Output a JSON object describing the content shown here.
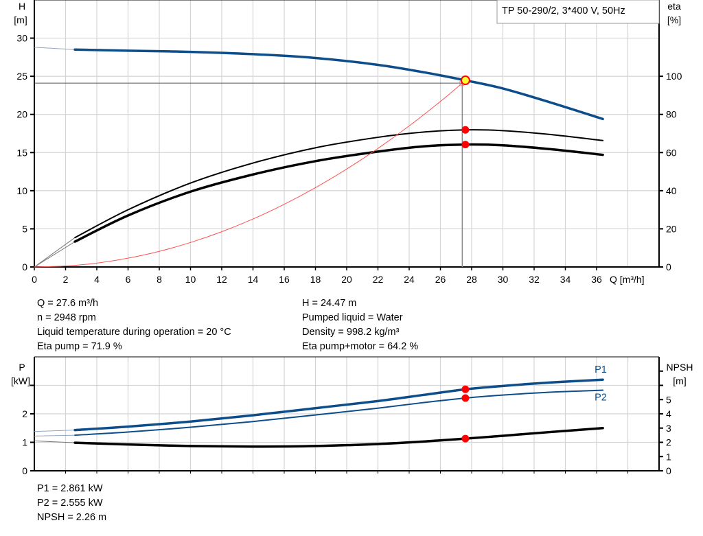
{
  "title": "TP 50-290/2, 3*400 V, 50Hz",
  "chart_data": [
    {
      "type": "line",
      "name_panel": "head-efficiency",
      "xlabel": "Q [m³/h]",
      "ylabel_left": [
        "H",
        "[m]"
      ],
      "ylabel_right": [
        "eta",
        "[%]"
      ],
      "xlim": [
        0,
        40
      ],
      "ylim_left": [
        0,
        35
      ],
      "ylim_right": [
        0,
        140
      ],
      "x_ticks": [
        "0",
        "2",
        "4",
        "6",
        "8",
        "10",
        "12",
        "14",
        "16",
        "18",
        "20",
        "22",
        "24",
        "26",
        "28",
        "30",
        "32",
        "34",
        "36"
      ],
      "y_ticks_left": [
        "0",
        "5",
        "10",
        "15",
        "20",
        "25",
        "30"
      ],
      "y_ticks_right": [
        "0",
        "20",
        "40",
        "60",
        "80",
        "100"
      ],
      "grid": true,
      "series": [
        {
          "key": "H",
          "axis": "left",
          "color": "#0d4d8a",
          "width": 3.5,
          "x": [
            2.6,
            6,
            10,
            14,
            18,
            22,
            25,
            27.6,
            30,
            33,
            36.4
          ],
          "y": [
            28.5,
            28.35,
            28.2,
            27.9,
            27.4,
            26.5,
            25.5,
            24.47,
            23.4,
            21.6,
            19.4
          ],
          "ext_x": [
            0,
            2.6
          ],
          "ext_y": [
            28.8,
            28.5
          ]
        },
        {
          "key": "eta_pump",
          "axis": "right",
          "color": "#000000",
          "width": 2,
          "x": [
            2.6,
            6,
            10,
            14,
            18,
            22,
            25,
            27.6,
            30,
            33,
            36.4
          ],
          "y": [
            15.4,
            30,
            44,
            54.5,
            62.5,
            68,
            70.8,
            71.9,
            71.5,
            69.5,
            66.3
          ],
          "ext_x": [
            0,
            2.6
          ],
          "ext_y": [
            0,
            15.4
          ]
        },
        {
          "key": "eta_total",
          "axis": "right",
          "color": "#000000",
          "width": 3.5,
          "x": [
            2.6,
            6,
            10,
            14,
            18,
            22,
            25,
            27.6,
            30,
            33,
            36.4
          ],
          "y": [
            13.3,
            27,
            39.5,
            48.5,
            55.5,
            60.5,
            63.3,
            64.2,
            63.8,
            61.8,
            58.8
          ],
          "ext_x": [
            0,
            2.6
          ],
          "ext_y": [
            0,
            13.3
          ]
        },
        {
          "key": "system",
          "axis": "left",
          "color": "#ff5050",
          "width": 1,
          "x": [
            0,
            2,
            4,
            6,
            8,
            10,
            12,
            14,
            16,
            18,
            20,
            22,
            24,
            26,
            27.4
          ],
          "y": [
            0,
            0.13,
            0.51,
            1.16,
            2.05,
            3.21,
            4.62,
            6.29,
            8.22,
            10.4,
            12.84,
            15.54,
            18.49,
            21.7,
            24.1
          ]
        }
      ],
      "operating_point": {
        "Q": 27.6,
        "H": 24.47,
        "eta_pump": 71.9,
        "eta_total": 64.2,
        "duty_Q": 27.4,
        "duty_H": 24.1
      }
    },
    {
      "type": "line",
      "name_panel": "power-npsh",
      "ylabel_left": [
        "P",
        "[kW]"
      ],
      "ylabel_right": [
        "NPSH",
        "[m]"
      ],
      "xlim": [
        0,
        40
      ],
      "ylim_left": [
        0,
        4
      ],
      "ylim_right": [
        0,
        8
      ],
      "y_ticks_left": [
        "0",
        "1",
        "2",
        ""
      ],
      "y_ticks_right": [
        "0",
        "1",
        "2",
        "3",
        "4",
        "5",
        "",
        ""
      ],
      "grid": true,
      "series": [
        {
          "key": "P1",
          "name": "P1",
          "axis": "left",
          "color": "#0d4d8a",
          "width": 3.5,
          "x": [
            2.6,
            6,
            10,
            14,
            18,
            22,
            25,
            27.6,
            30,
            33,
            36.4
          ],
          "y": [
            1.43,
            1.55,
            1.73,
            1.95,
            2.2,
            2.45,
            2.67,
            2.861,
            2.98,
            3.1,
            3.2
          ],
          "ext_x": [
            0,
            2.6
          ],
          "ext_y": [
            1.38,
            1.43
          ]
        },
        {
          "key": "P2",
          "name": "P2",
          "axis": "left",
          "color": "#0d4d8a",
          "width": 2,
          "x": [
            2.6,
            6,
            10,
            14,
            18,
            22,
            25,
            27.6,
            30,
            33,
            36.4
          ],
          "y": [
            1.25,
            1.36,
            1.53,
            1.73,
            1.96,
            2.2,
            2.4,
            2.555,
            2.66,
            2.76,
            2.83
          ],
          "ext_x": [
            0,
            2.6
          ],
          "ext_y": [
            1.22,
            1.25
          ]
        },
        {
          "key": "NPSH",
          "axis": "right",
          "color": "#000000",
          "width": 3.5,
          "x": [
            2.6,
            6,
            10,
            14,
            18,
            22,
            25,
            27.6,
            30,
            33,
            36.4
          ],
          "y": [
            1.97,
            1.85,
            1.74,
            1.7,
            1.74,
            1.88,
            2.06,
            2.26,
            2.46,
            2.72,
            3.0
          ],
          "ext_x": [
            0,
            2.6
          ],
          "ext_y": [
            2.1,
            1.97
          ]
        }
      ],
      "operating_point": {
        "Q": 27.6,
        "P1": 2.861,
        "P2": 2.555,
        "NPSH": 2.26
      }
    }
  ],
  "info_top": {
    "left": [
      "Q = 27.6 m³/h",
      "n = 2948 rpm",
      "Liquid temperature during operation = 20 °C",
      "Eta pump = 71.9 %"
    ],
    "right": [
      "H = 24.47 m",
      "Pumped liquid = Water",
      "Density = 998.2 kg/m³",
      "Eta pump+motor = 64.2 %"
    ]
  },
  "info_bottom": [
    "P1 = 2.861 kW",
    "P2 = 2.555 kW",
    "NPSH = 2.26 m"
  ],
  "colors": {
    "head": "#0d4d8a",
    "power": "#0d4d8a",
    "efficiency": "#000000",
    "system_curve": "#ff5050",
    "marker": "#ff0000",
    "operating_marker": "#ffff33"
  }
}
